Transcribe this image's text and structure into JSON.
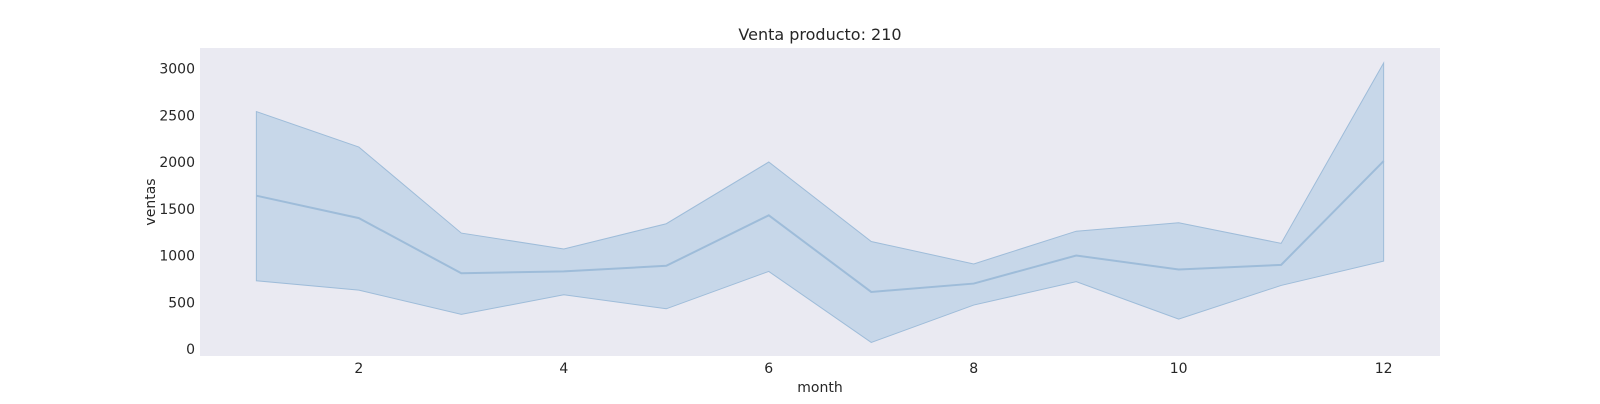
{
  "chart_data": {
    "type": "line",
    "title": "Venta producto: 210",
    "xlabel": "month",
    "ylabel": "ventas",
    "xlim": [
      0.45,
      12.55
    ],
    "ylim": [
      -75,
      3220
    ],
    "xticks": [
      2,
      4,
      6,
      8,
      10,
      12
    ],
    "yticks": [
      0,
      500,
      1000,
      1500,
      2000,
      2500,
      3000
    ],
    "grid": false,
    "legend": "none",
    "colors": {
      "plot_background": "#eaeaf2",
      "line": "#9ebcd9",
      "band_fill": "#b3cde3",
      "band_opacity": 0.65
    },
    "x": [
      1,
      2,
      3,
      4,
      5,
      6,
      7,
      8,
      9,
      10,
      11,
      12
    ],
    "series": [
      {
        "values": [
          1640,
          1400,
          810,
          830,
          890,
          1430,
          610,
          700,
          1000,
          850,
          900,
          2010
        ],
        "band_upper": [
          2540,
          2160,
          1240,
          1070,
          1340,
          2000,
          1150,
          910,
          1260,
          1350,
          1130,
          3060
        ],
        "band_lower": [
          730,
          630,
          370,
          580,
          430,
          830,
          70,
          470,
          720,
          320,
          680,
          940
        ]
      }
    ]
  }
}
